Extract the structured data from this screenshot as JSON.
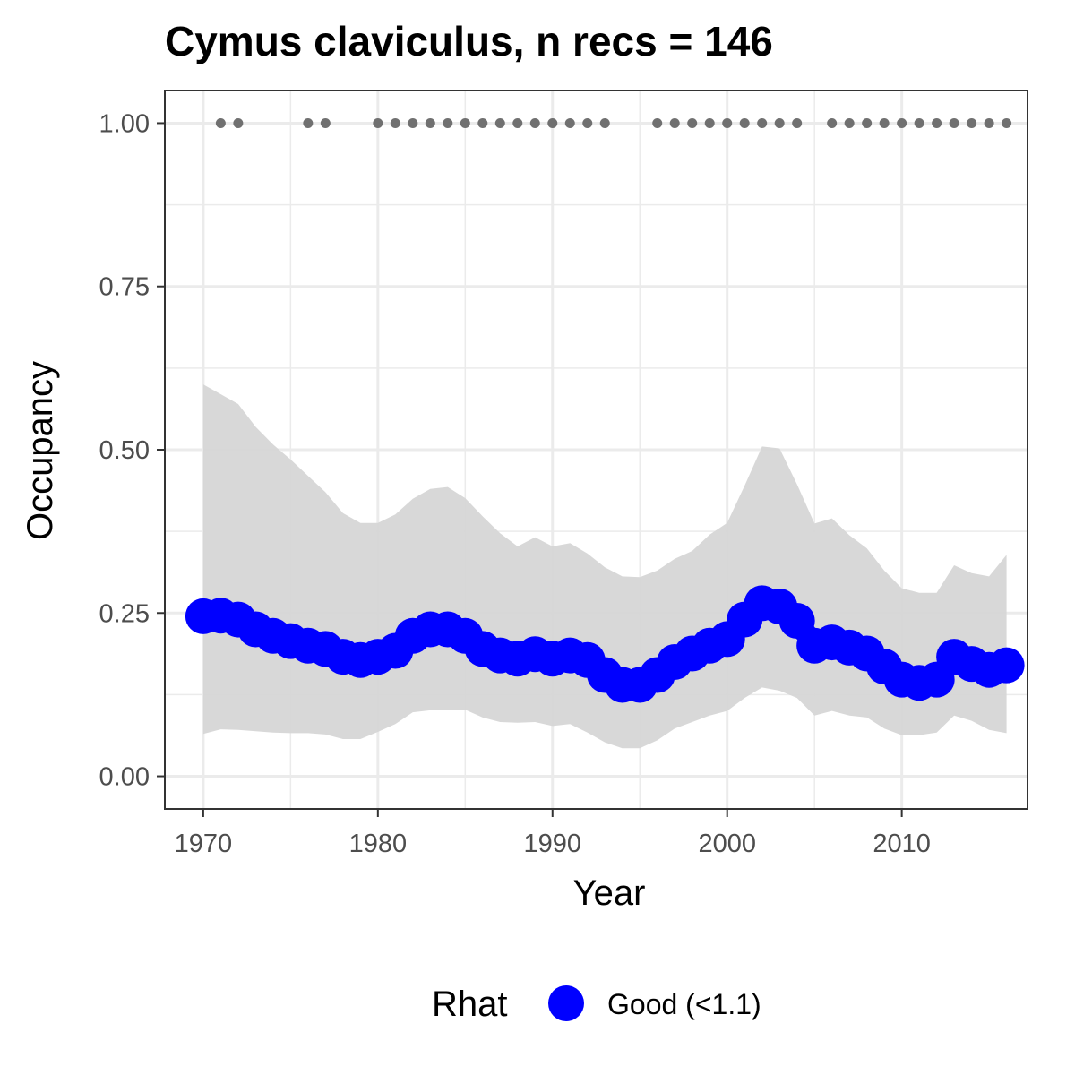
{
  "chart_data": {
    "type": "line",
    "title": "Cymus claviculus, n recs = 146",
    "xlabel": "Year",
    "ylabel": "Occupancy",
    "xlim": [
      1967.8,
      2017.2
    ],
    "ylim": [
      -0.05,
      1.05
    ],
    "x_ticks": [
      1970,
      1980,
      1990,
      2000,
      2010
    ],
    "y_ticks": [
      0.0,
      0.25,
      0.5,
      0.75,
      1.0
    ],
    "y_tick_labels": [
      "0.00",
      "0.25",
      "0.50",
      "0.75",
      "1.00"
    ],
    "grid": true,
    "legend_position": "bottom",
    "legend": {
      "title": "Rhat",
      "entries": [
        {
          "label": "Good (<1.1)",
          "color": "#0000ff"
        }
      ]
    },
    "colors": {
      "line": "#0000ff",
      "ribbon": "#d6d6d6",
      "records": "#707070",
      "grid": "#ebebeb",
      "panel_border": "#333333"
    },
    "series": [
      {
        "name": "Good (<1.1)",
        "x": [
          1970,
          1971,
          1972,
          1973,
          1974,
          1975,
          1976,
          1977,
          1978,
          1979,
          1980,
          1981,
          1982,
          1983,
          1984,
          1985,
          1986,
          1987,
          1988,
          1989,
          1990,
          1991,
          1992,
          1993,
          1994,
          1995,
          1996,
          1997,
          1998,
          1999,
          2000,
          2001,
          2002,
          2003,
          2004,
          2005,
          2006,
          2007,
          2008,
          2009,
          2010,
          2011,
          2012,
          2013,
          2014,
          2015,
          2016
        ],
        "y": [
          0.245,
          0.246,
          0.24,
          0.225,
          0.215,
          0.207,
          0.2,
          0.195,
          0.183,
          0.178,
          0.183,
          0.192,
          0.215,
          0.225,
          0.225,
          0.215,
          0.195,
          0.185,
          0.18,
          0.187,
          0.18,
          0.185,
          0.178,
          0.155,
          0.14,
          0.14,
          0.155,
          0.175,
          0.188,
          0.2,
          0.21,
          0.24,
          0.265,
          0.26,
          0.238,
          0.2,
          0.205,
          0.197,
          0.188,
          0.168,
          0.148,
          0.143,
          0.148,
          0.183,
          0.172,
          0.163,
          0.17
        ],
        "lower": [
          0.065,
          0.072,
          0.071,
          0.069,
          0.067,
          0.066,
          0.066,
          0.064,
          0.057,
          0.057,
          0.068,
          0.08,
          0.098,
          0.101,
          0.101,
          0.102,
          0.09,
          0.083,
          0.082,
          0.083,
          0.077,
          0.08,
          0.067,
          0.052,
          0.043,
          0.043,
          0.055,
          0.073,
          0.083,
          0.093,
          0.1,
          0.12,
          0.136,
          0.131,
          0.12,
          0.093,
          0.1,
          0.093,
          0.09,
          0.073,
          0.063,
          0.063,
          0.067,
          0.093,
          0.085,
          0.071,
          0.066
        ],
        "upper": [
          0.6,
          0.585,
          0.57,
          0.535,
          0.508,
          0.485,
          0.46,
          0.435,
          0.403,
          0.388,
          0.388,
          0.401,
          0.425,
          0.44,
          0.443,
          0.426,
          0.398,
          0.372,
          0.352,
          0.366,
          0.352,
          0.357,
          0.341,
          0.32,
          0.306,
          0.305,
          0.315,
          0.333,
          0.345,
          0.37,
          0.388,
          0.445,
          0.505,
          0.502,
          0.447,
          0.387,
          0.395,
          0.369,
          0.349,
          0.315,
          0.288,
          0.281,
          0.281,
          0.323,
          0.311,
          0.306,
          0.339
        ]
      }
    ],
    "record_years": [
      1971,
      1972,
      1976,
      1977,
      1980,
      1981,
      1982,
      1983,
      1984,
      1985,
      1986,
      1987,
      1988,
      1989,
      1990,
      1991,
      1992,
      1993,
      1996,
      1997,
      1998,
      1999,
      2000,
      2001,
      2002,
      2003,
      2004,
      2006,
      2007,
      2008,
      2009,
      2010,
      2011,
      2012,
      2013,
      2014,
      2015,
      2016
    ],
    "record_value": 1.0
  }
}
